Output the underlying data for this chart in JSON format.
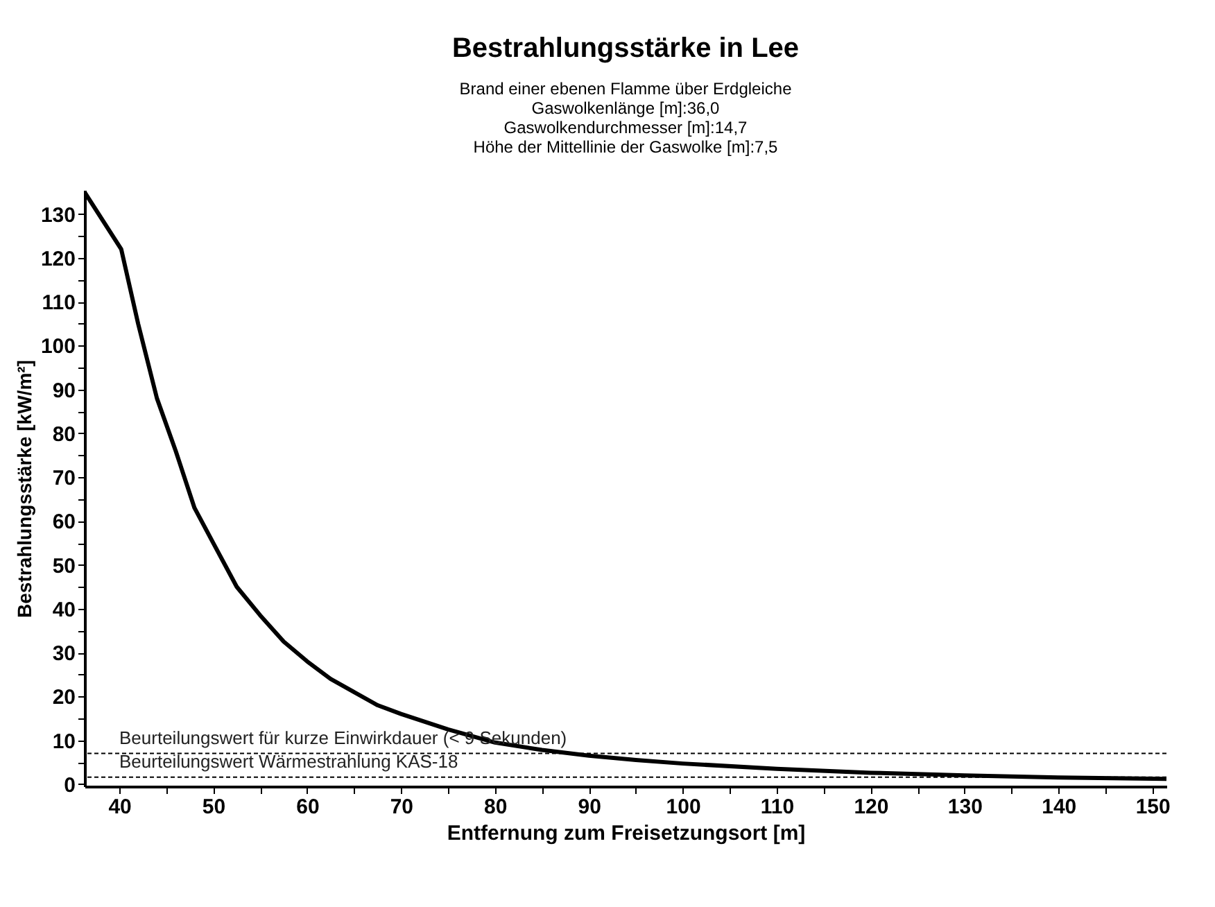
{
  "chart_data": {
    "type": "line",
    "title": "Bestrahlungsstärke in Lee",
    "subtitle": "Brand einer ebenen Flamme über Erdgleiche\nGaswolkenlänge [m]:36,0\nGaswolkendurchmesser [m]:14,7\nHöhe der Mittellinie der Gaswolke [m]:7,5",
    "xlabel": "Entfernung zum Freisetzungsort [m]",
    "ylabel": "Bestrahlungsstärke [kW/m²]",
    "x": [
      36.3,
      40.2,
      42,
      44,
      46,
      48,
      50,
      52.5,
      55,
      57.5,
      60,
      62.5,
      65,
      67.5,
      70,
      75,
      80,
      85,
      90,
      95,
      100,
      110,
      120,
      130,
      140,
      151.5
    ],
    "series": [
      {
        "color": "#000000",
        "values": [
          135,
          122,
          105,
          88,
          76,
          63,
          55,
          45,
          38.5,
          32.5,
          28,
          24,
          21,
          18,
          16,
          12.5,
          9.5,
          7.8,
          6.5,
          5.5,
          4.7,
          3.5,
          2.6,
          2.0,
          1.5,
          1.2
        ]
      }
    ],
    "xlim": [
      36.3,
      151.5
    ],
    "ylim": [
      -0.5,
      135.5
    ],
    "xticks": [
      40,
      {
        "value": 45,
        "label": null
      },
      50,
      {
        "value": 55,
        "label": null
      },
      60,
      {
        "value": 65,
        "label": null
      },
      70,
      {
        "value": 75,
        "label": null
      },
      80,
      {
        "value": 85,
        "label": null
      },
      90,
      {
        "value": 95,
        "label": null
      },
      100,
      {
        "value": 105,
        "label": null
      },
      110,
      {
        "value": 115,
        "label": null
      },
      120,
      {
        "value": 125,
        "label": null
      },
      130,
      {
        "value": 135,
        "label": null
      },
      140,
      {
        "value": 145,
        "label": null
      },
      150
    ],
    "yticks": [
      0,
      {
        "value": 5,
        "label": null
      },
      10,
      {
        "value": 15,
        "label": null
      },
      20,
      {
        "value": 25,
        "label": null
      },
      30,
      {
        "value": 35,
        "label": null
      },
      40,
      {
        "value": 45,
        "label": null
      },
      50,
      {
        "value": 55,
        "label": null
      },
      60,
      {
        "value": 65,
        "label": null
      },
      70,
      {
        "value": 75,
        "label": null
      },
      80,
      {
        "value": 85,
        "label": null
      },
      90,
      {
        "value": 95,
        "label": null
      },
      100,
      {
        "value": 105,
        "label": null
      },
      110,
      {
        "value": 115,
        "label": null
      },
      120,
      {
        "value": 125,
        "label": null
      },
      130
    ],
    "ref_lines": [
      {
        "axis": "y",
        "value": 7,
        "label": "Beurteilungswert für kurze Einwirkdauer (< 9 Sekunden)",
        "color": "#000000",
        "line_style": "dotted"
      },
      {
        "axis": "y",
        "value": 1.6,
        "label": "Beurteilungswert Wärmestrahlung KAS-18",
        "color": "#000000",
        "line_style": "dotted"
      }
    ],
    "grid": false,
    "marker": "none",
    "line_style": "solid"
  }
}
